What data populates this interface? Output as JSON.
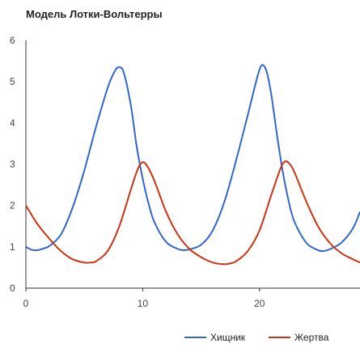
{
  "chart_data": {
    "type": "line",
    "title": "Модель Лотки-Вольтерры",
    "xlabel": "",
    "ylabel": "",
    "xlim": [
      0,
      28.6
    ],
    "ylim": [
      0,
      6
    ],
    "x_ticks": [
      0,
      10,
      20
    ],
    "y_ticks": [
      0,
      1,
      2,
      3,
      4,
      5,
      6
    ],
    "grid": false,
    "legend_position": "bottom-right",
    "series": [
      {
        "name": "Хищник",
        "color": "#3366cc",
        "points": [
          [
            0,
            1.0
          ],
          [
            0.5,
            0.93
          ],
          [
            1,
            0.92
          ],
          [
            1.5,
            0.96
          ],
          [
            2,
            1.02
          ],
          [
            3,
            1.3
          ],
          [
            4,
            1.95
          ],
          [
            5,
            2.85
          ],
          [
            6,
            3.9
          ],
          [
            7,
            4.85
          ],
          [
            7.6,
            5.25
          ],
          [
            8,
            5.35
          ],
          [
            8.4,
            5.2
          ],
          [
            9,
            4.4
          ],
          [
            9.5,
            3.4
          ],
          [
            10,
            2.65
          ],
          [
            10.5,
            2.05
          ],
          [
            11,
            1.6
          ],
          [
            12,
            1.12
          ],
          [
            13,
            0.95
          ],
          [
            13.5,
            0.92
          ],
          [
            14,
            0.94
          ],
          [
            15,
            1.05
          ],
          [
            16,
            1.4
          ],
          [
            17,
            2.1
          ],
          [
            18,
            3.1
          ],
          [
            19,
            4.2
          ],
          [
            19.8,
            5.1
          ],
          [
            20.2,
            5.4
          ],
          [
            20.6,
            5.25
          ],
          [
            21,
            4.7
          ],
          [
            21.5,
            3.7
          ],
          [
            22,
            2.8
          ],
          [
            22.5,
            2.1
          ],
          [
            23,
            1.6
          ],
          [
            24,
            1.1
          ],
          [
            25,
            0.92
          ],
          [
            25.5,
            0.9
          ],
          [
            26,
            0.94
          ],
          [
            27,
            1.1
          ],
          [
            28,
            1.45
          ],
          [
            28.6,
            1.85
          ]
        ]
      },
      {
        "name": "Жертва",
        "color": "#cc3311",
        "points": [
          [
            0,
            2.0
          ],
          [
            1,
            1.55
          ],
          [
            2,
            1.2
          ],
          [
            3,
            0.9
          ],
          [
            4,
            0.7
          ],
          [
            5,
            0.62
          ],
          [
            5.5,
            0.62
          ],
          [
            6,
            0.65
          ],
          [
            7,
            0.9
          ],
          [
            8,
            1.5
          ],
          [
            9,
            2.4
          ],
          [
            9.6,
            2.9
          ],
          [
            10,
            3.05
          ],
          [
            10.4,
            2.95
          ],
          [
            11,
            2.6
          ],
          [
            12,
            1.85
          ],
          [
            13,
            1.3
          ],
          [
            14,
            0.95
          ],
          [
            15,
            0.75
          ],
          [
            16,
            0.62
          ],
          [
            17,
            0.58
          ],
          [
            17.5,
            0.6
          ],
          [
            18,
            0.65
          ],
          [
            19,
            0.9
          ],
          [
            20,
            1.4
          ],
          [
            21,
            2.25
          ],
          [
            21.8,
            2.9
          ],
          [
            22.2,
            3.07
          ],
          [
            22.6,
            3.0
          ],
          [
            23,
            2.8
          ],
          [
            24,
            2.1
          ],
          [
            25,
            1.5
          ],
          [
            26,
            1.1
          ],
          [
            27,
            0.85
          ],
          [
            28,
            0.7
          ],
          [
            28.6,
            0.62
          ]
        ]
      }
    ]
  }
}
